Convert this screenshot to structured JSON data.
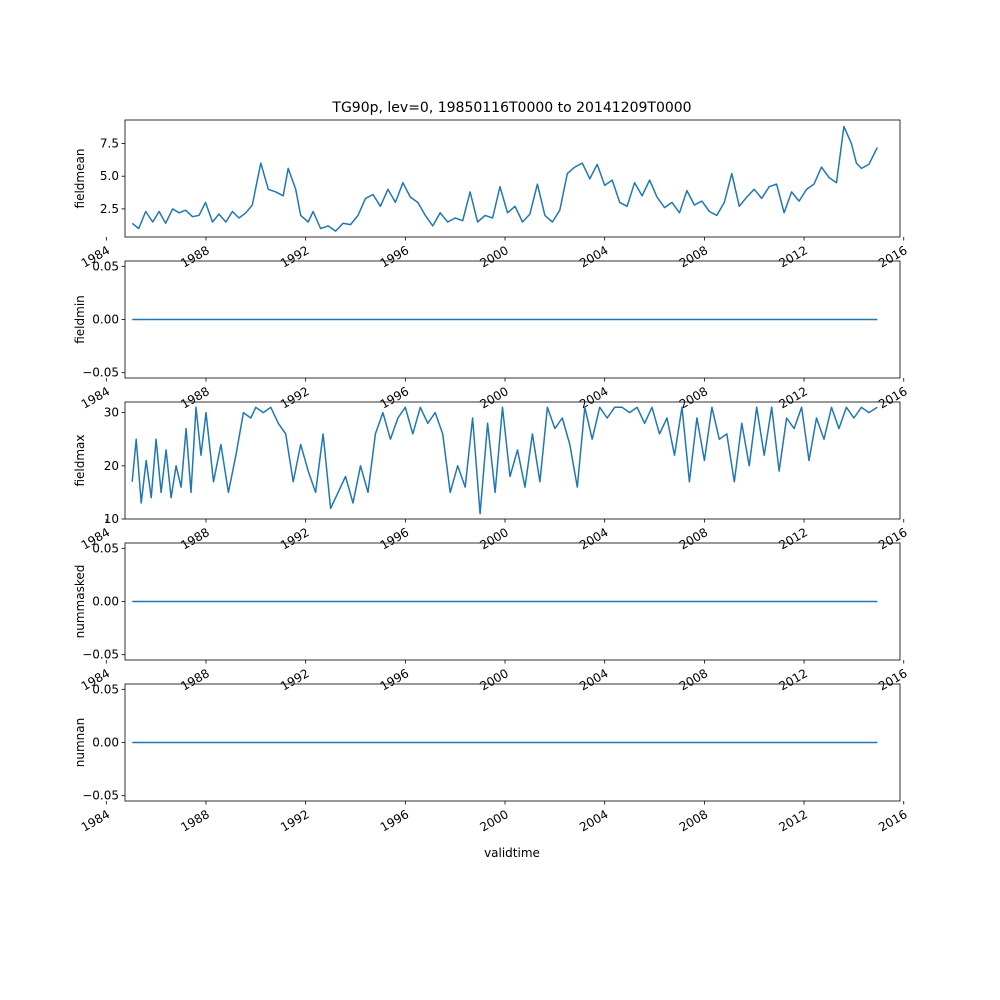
{
  "title": "TG90p, lev=0, 19850116T0000 to 20141209T0000",
  "xlabel": "validtime",
  "line_color": "#1f77b4",
  "chart_data": [
    {
      "type": "line",
      "ylabel": "fieldmean",
      "xlim": [
        1984.75,
        2015.85
      ],
      "ylim": [
        0.35,
        9.3
      ],
      "yticks": [
        2.5,
        5.0,
        7.5
      ],
      "ytick_labels": [
        "2.5",
        "5.0",
        "7.5"
      ],
      "xticks": [
        1984,
        1988,
        1992,
        1996,
        2000,
        2004,
        2008,
        2012,
        2016
      ],
      "xtick_labels": [
        "1984",
        "1988",
        "1992",
        "1996",
        "2000",
        "2004",
        "2008",
        "2012",
        "2016"
      ],
      "x": [
        1985.04,
        1985.3,
        1985.58,
        1985.86,
        1986.12,
        1986.38,
        1986.66,
        1986.92,
        1987.18,
        1987.46,
        1987.72,
        1987.98,
        1988.26,
        1988.52,
        1988.8,
        1989.06,
        1989.32,
        1989.6,
        1989.86,
        1990.04,
        1990.2,
        1990.5,
        1990.8,
        1991.1,
        1991.3,
        1991.6,
        1991.8,
        1992.1,
        1992.3,
        1992.6,
        1992.9,
        1993.2,
        1993.5,
        1993.8,
        1994.1,
        1994.4,
        1994.7,
        1995.0,
        1995.3,
        1995.6,
        1995.9,
        1996.2,
        1996.5,
        1996.8,
        1997.1,
        1997.4,
        1997.7,
        1998.0,
        1998.3,
        1998.6,
        1998.9,
        1999.2,
        1999.5,
        1999.8,
        2000.1,
        2000.4,
        2000.7,
        2001.0,
        2001.3,
        2001.6,
        2001.9,
        2002.2,
        2002.5,
        2002.8,
        2003.1,
        2003.4,
        2003.7,
        2004.0,
        2004.3,
        2004.6,
        2004.9,
        2005.2,
        2005.5,
        2005.8,
        2006.1,
        2006.4,
        2006.7,
        2007.0,
        2007.3,
        2007.6,
        2007.9,
        2008.2,
        2008.5,
        2008.8,
        2009.1,
        2009.4,
        2009.7,
        2010.0,
        2010.3,
        2010.6,
        2010.9,
        2011.2,
        2011.5,
        2011.8,
        2012.1,
        2012.4,
        2012.7,
        2013.0,
        2013.3,
        2013.6,
        2013.9,
        2014.1,
        2014.3,
        2014.6,
        2014.94
      ],
      "y": [
        1.4,
        1.0,
        2.3,
        1.5,
        2.3,
        1.4,
        2.5,
        2.2,
        2.4,
        1.9,
        2.0,
        3.0,
        1.5,
        2.1,
        1.5,
        2.3,
        1.8,
        2.2,
        2.8,
        4.5,
        6.0,
        4.0,
        3.8,
        3.5,
        5.6,
        4.0,
        2.0,
        1.5,
        2.3,
        1.0,
        1.2,
        0.8,
        1.4,
        1.3,
        2.0,
        3.3,
        3.6,
        2.7,
        4.0,
        3.0,
        4.5,
        3.4,
        3.0,
        2.0,
        1.2,
        2.2,
        1.5,
        1.8,
        1.6,
        3.8,
        1.5,
        2.0,
        1.8,
        4.2,
        2.2,
        2.7,
        1.5,
        2.1,
        4.4,
        2.0,
        1.5,
        2.4,
        5.2,
        5.7,
        6.0,
        4.8,
        5.9,
        4.3,
        4.7,
        3.0,
        2.7,
        4.5,
        3.5,
        4.7,
        3.4,
        2.6,
        3.0,
        2.2,
        3.9,
        2.8,
        3.1,
        2.3,
        2.0,
        3.0,
        5.2,
        2.7,
        3.4,
        4.0,
        3.3,
        4.2,
        4.4,
        2.2,
        3.8,
        3.1,
        4.0,
        4.4,
        5.7,
        4.9,
        4.5,
        8.8,
        7.5,
        6.0,
        5.6,
        5.9,
        7.2
      ]
    },
    {
      "type": "line",
      "ylabel": "fieldmin",
      "xlim": [
        1984.75,
        2015.85
      ],
      "ylim": [
        -0.055,
        0.055
      ],
      "yticks": [
        -0.05,
        0.0,
        0.05
      ],
      "ytick_labels": [
        "−0.05",
        "0.00",
        "0.05"
      ],
      "xticks": [
        1984,
        1988,
        1992,
        1996,
        2000,
        2004,
        2008,
        2012,
        2016
      ],
      "xtick_labels": [
        "1984",
        "1988",
        "1992",
        "1996",
        "2000",
        "2004",
        "2008",
        "2012",
        "2016"
      ],
      "x": [
        1985.04,
        2014.94
      ],
      "y": [
        0,
        0
      ]
    },
    {
      "type": "line",
      "ylabel": "fieldmax",
      "xlim": [
        1984.75,
        2015.85
      ],
      "ylim": [
        10,
        32
      ],
      "yticks": [
        10,
        20,
        30
      ],
      "ytick_labels": [
        "10",
        "20",
        "30"
      ],
      "xticks": [
        1984,
        1988,
        1992,
        1996,
        2000,
        2004,
        2008,
        2012,
        2016
      ],
      "xtick_labels": [
        "1984",
        "1988",
        "1992",
        "1996",
        "2000",
        "2004",
        "2008",
        "2012",
        "2016"
      ],
      "x": [
        1985.04,
        1985.2,
        1985.4,
        1985.6,
        1985.8,
        1986.0,
        1986.2,
        1986.4,
        1986.6,
        1986.8,
        1987.0,
        1987.2,
        1987.4,
        1987.6,
        1987.8,
        1988.0,
        1988.3,
        1988.6,
        1988.9,
        1989.2,
        1989.5,
        1989.8,
        1990.0,
        1990.3,
        1990.6,
        1990.9,
        1991.2,
        1991.5,
        1991.8,
        1992.1,
        1992.4,
        1992.7,
        1993.0,
        1993.3,
        1993.6,
        1993.9,
        1994.2,
        1994.5,
        1994.8,
        1995.1,
        1995.4,
        1995.7,
        1996.0,
        1996.3,
        1996.6,
        1996.9,
        1997.2,
        1997.5,
        1997.8,
        1998.1,
        1998.4,
        1998.7,
        1999.0,
        1999.3,
        1999.6,
        1999.9,
        2000.2,
        2000.5,
        2000.8,
        2001.1,
        2001.4,
        2001.7,
        2002.0,
        2002.3,
        2002.6,
        2002.9,
        2003.2,
        2003.5,
        2003.8,
        2004.1,
        2004.4,
        2004.7,
        2005.0,
        2005.3,
        2005.6,
        2005.9,
        2006.2,
        2006.5,
        2006.8,
        2007.1,
        2007.4,
        2007.7,
        2008.0,
        2008.3,
        2008.6,
        2008.9,
        2009.2,
        2009.5,
        2009.8,
        2010.1,
        2010.4,
        2010.7,
        2011.0,
        2011.3,
        2011.6,
        2011.9,
        2012.2,
        2012.5,
        2012.8,
        2013.1,
        2013.4,
        2013.7,
        2014.0,
        2014.3,
        2014.6,
        2014.94
      ],
      "y": [
        17,
        25,
        13,
        21,
        14,
        25,
        15,
        23,
        14,
        20,
        16,
        27,
        15,
        31,
        22,
        30,
        17,
        24,
        15,
        22,
        30,
        29,
        31,
        30,
        31,
        28,
        26,
        17,
        24,
        19,
        15,
        26,
        12,
        15,
        18,
        13,
        20,
        15,
        26,
        30,
        25,
        29,
        31,
        26,
        31,
        28,
        30,
        26,
        15,
        20,
        16,
        29,
        11,
        28,
        15,
        31,
        18,
        23,
        16,
        26,
        17,
        31,
        27,
        29,
        24,
        16,
        31,
        25,
        31,
        29,
        31,
        31,
        30,
        31,
        28,
        31,
        26,
        29,
        22,
        31,
        17,
        29,
        21,
        31,
        25,
        26,
        17,
        28,
        20,
        31,
        22,
        31,
        19,
        29,
        27,
        31,
        21,
        29,
        25,
        31,
        27,
        31,
        29,
        31,
        30,
        31
      ]
    },
    {
      "type": "line",
      "ylabel": "nummasked",
      "xlim": [
        1984.75,
        2015.85
      ],
      "ylim": [
        -0.055,
        0.055
      ],
      "yticks": [
        -0.05,
        0.0,
        0.05
      ],
      "ytick_labels": [
        "−0.05",
        "0.00",
        "0.05"
      ],
      "xticks": [
        1984,
        1988,
        1992,
        1996,
        2000,
        2004,
        2008,
        2012,
        2016
      ],
      "xtick_labels": [
        "1984",
        "1988",
        "1992",
        "1996",
        "2000",
        "2004",
        "2008",
        "2012",
        "2016"
      ],
      "x": [
        1985.04,
        2014.94
      ],
      "y": [
        0,
        0
      ]
    },
    {
      "type": "line",
      "ylabel": "numnan",
      "xlim": [
        1984.75,
        2015.85
      ],
      "ylim": [
        -0.055,
        0.055
      ],
      "yticks": [
        -0.05,
        0.0,
        0.05
      ],
      "ytick_labels": [
        "−0.05",
        "0.00",
        "0.05"
      ],
      "xticks": [
        1984,
        1988,
        1992,
        1996,
        2000,
        2004,
        2008,
        2012,
        2016
      ],
      "xtick_labels": [
        "1984",
        "1988",
        "1992",
        "1996",
        "2000",
        "2004",
        "2008",
        "2012",
        "2016"
      ],
      "x": [
        1985.04,
        2014.94
      ],
      "y": [
        0,
        0
      ]
    }
  ]
}
